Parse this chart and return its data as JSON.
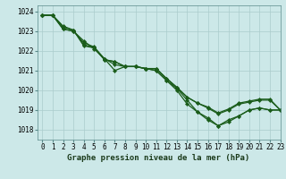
{
  "title": "Graphe pression niveau de la mer (hPa)",
  "bg_color": "#cce8e8",
  "grid_color": "#aacccc",
  "line_color": "#1a5c1a",
  "xlim": [
    -0.5,
    23
  ],
  "ylim": [
    1017.5,
    1024.3
  ],
  "yticks": [
    1018,
    1019,
    1020,
    1021,
    1022,
    1023,
    1024
  ],
  "xticks": [
    0,
    1,
    2,
    3,
    4,
    5,
    6,
    7,
    8,
    9,
    10,
    11,
    12,
    13,
    14,
    15,
    16,
    17,
    18,
    19,
    20,
    21,
    22,
    23
  ],
  "series": [
    [
      1023.8,
      1023.8,
      1023.1,
      1023.0,
      1022.4,
      1022.2,
      1021.6,
      1021.3,
      1021.2,
      1021.2,
      1021.1,
      1021.0,
      1020.5,
      1020.1,
      1019.5,
      1018.9,
      1018.5,
      1018.2,
      1018.5,
      1018.7,
      1019.0,
      1019.1,
      1019.0,
      1019.0
    ],
    [
      1023.8,
      1023.8,
      1023.1,
      1023.0,
      1022.5,
      1022.1,
      1021.6,
      1021.0,
      1021.2,
      1021.2,
      1021.1,
      1021.0,
      1020.5,
      1020.0,
      1019.3,
      1018.9,
      1018.6,
      1018.2,
      1018.4,
      1018.7,
      1019.0,
      1019.1,
      1019.0,
      1019.0
    ],
    [
      1023.8,
      1023.8,
      1023.2,
      1023.05,
      1022.3,
      1022.15,
      1021.55,
      1021.45,
      1021.2,
      1021.2,
      1021.1,
      1021.1,
      1020.6,
      1020.15,
      1019.65,
      1019.35,
      1019.15,
      1018.85,
      1019.05,
      1019.35,
      1019.45,
      1019.55,
      1019.55,
      1019.0
    ],
    [
      1023.8,
      1023.8,
      1023.25,
      1023.05,
      1022.25,
      1022.15,
      1021.55,
      1021.45,
      1021.2,
      1021.2,
      1021.1,
      1021.1,
      1020.6,
      1020.15,
      1019.65,
      1019.35,
      1019.1,
      1018.8,
      1019.0,
      1019.3,
      1019.4,
      1019.5,
      1019.5,
      1019.0
    ]
  ],
  "tick_fontsize": 5.5,
  "xlabel_fontsize": 6.5,
  "linewidth": 0.9,
  "markersize": 2.2
}
